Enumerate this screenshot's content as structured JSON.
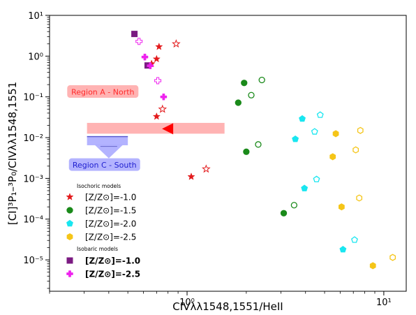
{
  "chart_data": {
    "type": "scatter",
    "xlabel": "CIVλλ1548,1551/HeII",
    "ylabel": "[CI]³P₁–³P₀/CIVλλ1548,1551",
    "x_scale": "log",
    "y_scale": "log",
    "xlim": [
      0.2,
      13.0
    ],
    "ylim": [
      1.7e-06,
      10.0
    ],
    "x_ticks": [
      {
        "value": 1,
        "label": "10⁰"
      },
      {
        "value": 10,
        "label": "10¹"
      }
    ],
    "y_ticks": [
      {
        "value": 1e-05,
        "label": "10⁻⁵"
      },
      {
        "value": 0.0001,
        "label": "10⁻⁴"
      },
      {
        "value": 0.001,
        "label": "10⁻³"
      },
      {
        "value": 0.01,
        "label": "10⁻²"
      },
      {
        "value": 0.1,
        "label": "10⁻¹"
      },
      {
        "value": 1,
        "label": "10⁰"
      },
      {
        "value": 10,
        "label": "10¹"
      }
    ],
    "grid": false,
    "legend_position": "lower-left",
    "legend": {
      "isochoric_title": "Isochoric models",
      "isobaric_title": "Isobaric models",
      "isochoric_entries": [
        {
          "label": "[Z/Z⊙]=-1.0",
          "marker": "star",
          "color": "#e31a1c"
        },
        {
          "label": "[Z/Z⊙]=-1.5",
          "marker": "circle",
          "color": "#1a8a1a"
        },
        {
          "label": "[Z/Z⊙]=-2.0",
          "marker": "pentagon",
          "color": "#19e6f0"
        },
        {
          "label": "[Z/Z⊙]=-2.5",
          "marker": "hexagon",
          "color": "#f5c518"
        }
      ],
      "isobaric_entries": [
        {
          "label": "[Z/Z⊙]=-1.0",
          "marker": "square",
          "color": "#7b1b82"
        },
        {
          "label": "[Z/Z⊙]=-2.5",
          "marker": "plus",
          "color": "#ee22ee"
        }
      ]
    },
    "series": [
      {
        "marker": "star",
        "color": "#e31a1c",
        "filled": true,
        "points": [
          [
            0.72,
            1.7
          ],
          [
            0.7,
            0.85
          ],
          [
            0.66,
            0.65
          ],
          [
            0.7,
            0.033
          ],
          [
            1.05,
            0.0011
          ]
        ]
      },
      {
        "marker": "star",
        "color": "#e31a1c",
        "filled": false,
        "points": [
          [
            0.88,
            2.0
          ],
          [
            0.75,
            0.05
          ],
          [
            1.25,
            0.0017
          ]
        ]
      },
      {
        "marker": "circle",
        "color": "#1a8a1a",
        "filled": true,
        "points": [
          [
            1.95,
            0.22
          ],
          [
            1.82,
            0.072
          ],
          [
            2.0,
            0.0045
          ],
          [
            3.1,
            0.00014
          ]
        ]
      },
      {
        "marker": "circle",
        "color": "#1a8a1a",
        "filled": false,
        "points": [
          [
            2.4,
            0.26
          ],
          [
            2.12,
            0.11
          ],
          [
            2.3,
            0.0068
          ],
          [
            3.5,
            0.00022
          ]
        ]
      },
      {
        "marker": "pentagon",
        "color": "#19e6f0",
        "filled": true,
        "points": [
          [
            3.85,
            0.029
          ],
          [
            3.55,
            0.0092
          ],
          [
            3.95,
            0.00057
          ],
          [
            6.2,
            1.8e-05
          ]
        ]
      },
      {
        "marker": "pentagon",
        "color": "#19e6f0",
        "filled": false,
        "points": [
          [
            4.75,
            0.036
          ],
          [
            4.45,
            0.014
          ],
          [
            4.55,
            0.00095
          ],
          [
            7.1,
            3.1e-05
          ]
        ]
      },
      {
        "marker": "hexagon",
        "color": "#f5c518",
        "filled": true,
        "points": [
          [
            5.7,
            0.0125
          ],
          [
            5.5,
            0.0034
          ],
          [
            6.1,
            0.0002
          ],
          [
            8.8,
            7.2e-06
          ]
        ]
      },
      {
        "marker": "hexagon",
        "color": "#f5c518",
        "filled": false,
        "points": [
          [
            7.6,
            0.015
          ],
          [
            7.2,
            0.005
          ],
          [
            7.5,
            0.00033
          ],
          [
            11.1,
            1.15e-05
          ]
        ]
      },
      {
        "marker": "square",
        "color": "#7b1b82",
        "filled": true,
        "points": [
          [
            0.54,
            3.5
          ],
          [
            0.63,
            0.59
          ]
        ]
      },
      {
        "marker": "plus",
        "color": "#ee22ee",
        "filled": true,
        "points": [
          [
            0.61,
            0.95
          ],
          [
            0.65,
            0.58
          ],
          [
            0.76,
            0.1
          ]
        ]
      },
      {
        "marker": "plus",
        "color": "#ee22ee",
        "filled": false,
        "points": [
          [
            0.57,
            2.3
          ],
          [
            0.71,
            0.25
          ]
        ]
      }
    ],
    "observations": [
      {
        "label": "Region A - North",
        "label_anchor": [
          0.25,
          0.13
        ],
        "bar_x": [
          0.31,
          1.55
        ],
        "bar_y": [
          0.0125,
          0.023
        ],
        "arrow_point": [
          0.85,
          0.0165
        ],
        "color": "#ff9999",
        "arrow_color": "#ff0000",
        "text_color": "#ff2a2a"
      },
      {
        "label": "Region C - South",
        "label_anchor": [
          0.255,
          0.0021
        ],
        "bar_x": [
          0.31,
          0.5
        ],
        "bar_y": [
          0.0065,
          0.011
        ],
        "arrow_point": [
          0.4,
          0.0066
        ],
        "color": "#9999ff",
        "text_color": "#2020d0"
      }
    ]
  }
}
